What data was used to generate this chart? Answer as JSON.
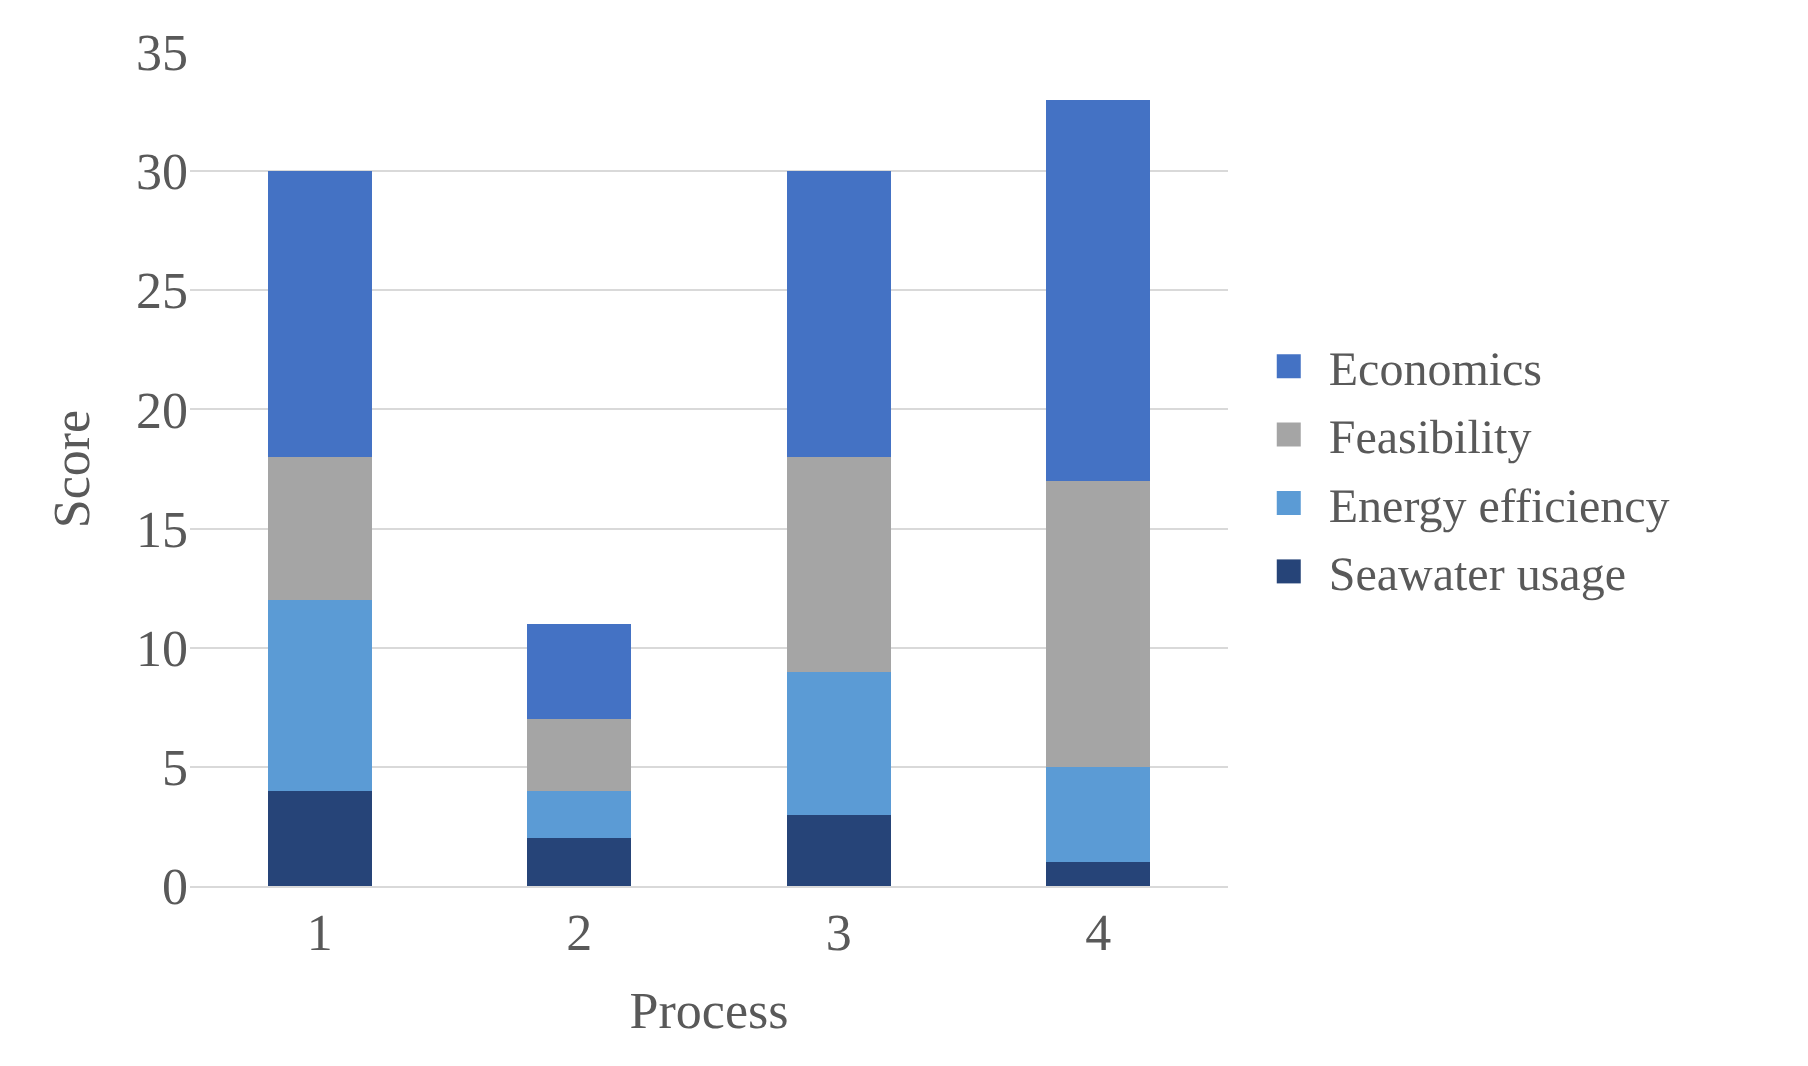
{
  "chart_data": {
    "type": "bar",
    "stacked": true,
    "xlabel": "Process",
    "ylabel": "Score",
    "categories": [
      "1",
      "2",
      "3",
      "4"
    ],
    "series": [
      {
        "name": "Seawater usage",
        "color": "#264478",
        "values": [
          4,
          2,
          3,
          1
        ]
      },
      {
        "name": "Energy efficiency",
        "color": "#5b9bd5",
        "values": [
          8,
          2,
          6,
          4
        ]
      },
      {
        "name": "Feasibility",
        "color": "#a5a5a5",
        "values": [
          6,
          3,
          9,
          12
        ]
      },
      {
        "name": "Economics",
        "color": "#4472c4",
        "values": [
          12,
          4,
          12,
          16
        ]
      }
    ],
    "ylim": [
      0,
      35
    ],
    "yticks": [
      0,
      5,
      10,
      15,
      20,
      25,
      30,
      35
    ],
    "grid": "y",
    "legend": "right"
  }
}
